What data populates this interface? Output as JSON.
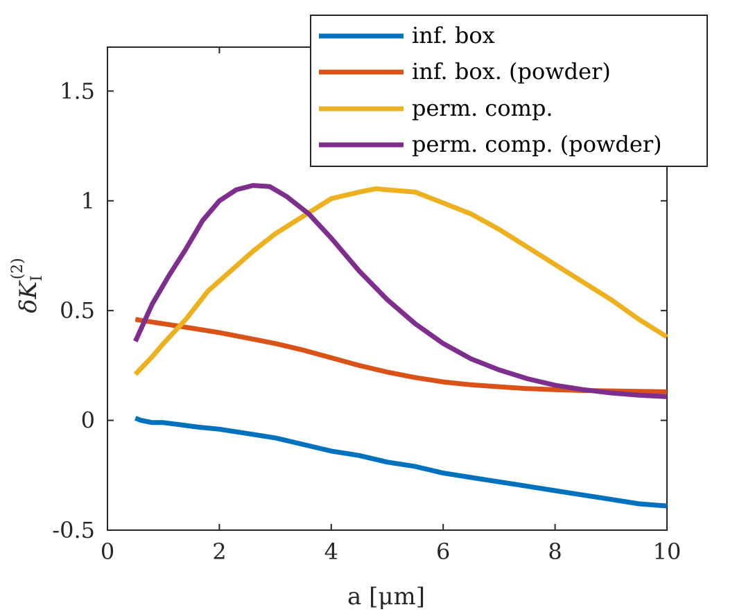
{
  "chart_data": {
    "type": "line",
    "title": "",
    "xlabel": "a [μm]",
    "ylabel": {
      "main": "δK",
      "subscript": "I",
      "superscript": "(2)"
    },
    "xlim": [
      0,
      10
    ],
    "ylim": [
      -0.5,
      1.7
    ],
    "xticks": [
      0,
      2,
      4,
      6,
      8,
      10
    ],
    "yticks": [
      -0.5,
      0,
      0.5,
      1,
      1.5
    ],
    "xtick_labels": [
      "0",
      "2",
      "4",
      "6",
      "8",
      "10"
    ],
    "ytick_labels": [
      "-0.5",
      "0",
      "0.5",
      "1",
      "1.5"
    ],
    "grid": false,
    "legend_position": "top-right",
    "series": [
      {
        "name": "inf. box",
        "color": "#0072BD",
        "x": [
          0.5,
          0.6,
          0.8,
          1.0,
          1.3,
          1.6,
          2.0,
          2.5,
          3.0,
          3.5,
          4.0,
          4.5,
          5.0,
          5.5,
          6.0,
          6.5,
          7.0,
          7.5,
          8.0,
          8.5,
          9.0,
          9.5,
          10.0
        ],
        "y": [
          0.01,
          0.0,
          -0.01,
          -0.01,
          -0.02,
          -0.03,
          -0.04,
          -0.06,
          -0.08,
          -0.11,
          -0.14,
          -0.16,
          -0.19,
          -0.21,
          -0.24,
          -0.26,
          -0.28,
          -0.3,
          -0.32,
          -0.34,
          -0.36,
          -0.38,
          -0.39
        ]
      },
      {
        "name": "inf. box. (powder)",
        "color": "#D95319",
        "x": [
          0.5,
          1.0,
          1.5,
          2.0,
          2.5,
          3.0,
          3.5,
          4.0,
          4.5,
          5.0,
          5.5,
          6.0,
          6.5,
          7.0,
          7.5,
          8.0,
          8.5,
          9.0,
          9.5,
          10.0
        ],
        "y": [
          0.46,
          0.44,
          0.42,
          0.4,
          0.375,
          0.35,
          0.32,
          0.285,
          0.25,
          0.22,
          0.195,
          0.175,
          0.162,
          0.153,
          0.145,
          0.14,
          0.136,
          0.134,
          0.132,
          0.13
        ]
      },
      {
        "name": "perm. comp.",
        "color": "#EDB120",
        "x": [
          0.5,
          0.8,
          1.0,
          1.4,
          1.8,
          2.2,
          2.6,
          3.0,
          3.5,
          4.0,
          4.5,
          4.8,
          5.0,
          5.5,
          6.0,
          6.5,
          7.0,
          7.5,
          8.0,
          8.5,
          9.0,
          9.5,
          10.0
        ],
        "y": [
          0.21,
          0.29,
          0.35,
          0.46,
          0.59,
          0.68,
          0.77,
          0.85,
          0.93,
          1.01,
          1.04,
          1.055,
          1.05,
          1.04,
          0.99,
          0.94,
          0.87,
          0.79,
          0.71,
          0.63,
          0.55,
          0.46,
          0.38
        ]
      },
      {
        "name": "perm. comp. (powder)",
        "color": "#7E2F8E",
        "x": [
          0.5,
          0.8,
          1.1,
          1.4,
          1.7,
          2.0,
          2.3,
          2.6,
          2.9,
          3.2,
          3.6,
          4.0,
          4.5,
          5.0,
          5.5,
          6.0,
          6.5,
          7.0,
          7.5,
          8.0,
          8.5,
          9.0,
          9.5,
          10.0
        ],
        "y": [
          0.36,
          0.53,
          0.66,
          0.78,
          0.91,
          1.0,
          1.05,
          1.07,
          1.065,
          1.02,
          0.94,
          0.83,
          0.68,
          0.55,
          0.44,
          0.35,
          0.28,
          0.23,
          0.19,
          0.16,
          0.14,
          0.125,
          0.115,
          0.108
        ]
      }
    ]
  }
}
